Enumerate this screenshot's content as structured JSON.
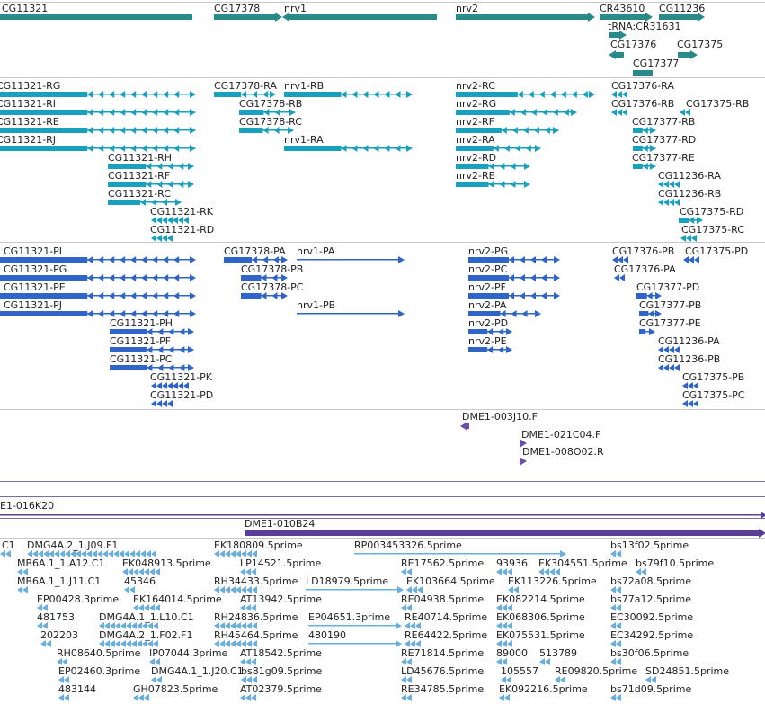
{
  "tracks": {
    "genes": {
      "color": "#2a8a8a",
      "features": [
        {
          "label": "CG11321"
        },
        {
          "label": "CG17378"
        },
        {
          "label": "nrv1"
        },
        {
          "label": "nrv2"
        },
        {
          "label": "CR43610"
        },
        {
          "label": "CG11236"
        },
        {
          "label": "tRNA:CR31631"
        },
        {
          "label": "CG17376"
        },
        {
          "label": "CG17375"
        },
        {
          "label": "CG17377"
        }
      ]
    },
    "transcripts": {
      "color": "#1aa0bf",
      "features": [
        {
          "label": "CG11321-RG"
        },
        {
          "label": "CG11321-RI"
        },
        {
          "label": "CG11321-RE"
        },
        {
          "label": "CG11321-RJ"
        },
        {
          "label": "CG11321-RH"
        },
        {
          "label": "CG11321-RF"
        },
        {
          "label": "CG11321-RC"
        },
        {
          "label": "CG11321-RK"
        },
        {
          "label": "CG11321-RD"
        },
        {
          "label": "CG17378-RA"
        },
        {
          "label": "nrv1-RB"
        },
        {
          "label": "CG17378-RB"
        },
        {
          "label": "CG17378-RC"
        },
        {
          "label": "nrv1-RA"
        },
        {
          "label": "nrv2-RC"
        },
        {
          "label": "nrv2-RG"
        },
        {
          "label": "nrv2-RF"
        },
        {
          "label": "nrv2-RA"
        },
        {
          "label": "nrv2-RD"
        },
        {
          "label": "nrv2-RE"
        },
        {
          "label": "CG17376-RA"
        },
        {
          "label": "CG17376-RB"
        },
        {
          "label": "CG17375-RB"
        },
        {
          "label": "CG17377-RB"
        },
        {
          "label": "CG17377-RD"
        },
        {
          "label": "CG17377-RE"
        },
        {
          "label": "CG11236-RA"
        },
        {
          "label": "CG11236-RB"
        },
        {
          "label": "CG17375-RD"
        },
        {
          "label": "CG17375-RC"
        }
      ]
    },
    "proteins": {
      "color": "#2f65c8",
      "features": [
        {
          "label": "CG11321-PI"
        },
        {
          "label": "CG11321-PG"
        },
        {
          "label": "CG11321-PE"
        },
        {
          "label": "CG11321-PJ"
        },
        {
          "label": "CG11321-PH"
        },
        {
          "label": "CG11321-PF"
        },
        {
          "label": "CG11321-PC"
        },
        {
          "label": "CG11321-PK"
        },
        {
          "label": "CG11321-PD"
        },
        {
          "label": "CG17378-PA"
        },
        {
          "label": "nrv1-PA"
        },
        {
          "label": "CG17378-PB"
        },
        {
          "label": "CG17378-PC"
        },
        {
          "label": "nrv1-PB"
        },
        {
          "label": "nrv2-PG"
        },
        {
          "label": "nrv2-PC"
        },
        {
          "label": "nrv2-PF"
        },
        {
          "label": "nrv2-PA"
        },
        {
          "label": "nrv2-PD"
        },
        {
          "label": "nrv2-PE"
        },
        {
          "label": "CG17376-PB"
        },
        {
          "label": "CG17375-PD"
        },
        {
          "label": "CG17376-PA"
        },
        {
          "label": "CG17377-PD"
        },
        {
          "label": "CG17377-PB"
        },
        {
          "label": "CG17377-PE"
        },
        {
          "label": "CG11236-PA"
        },
        {
          "label": "CG11236-PB"
        },
        {
          "label": "CG17375-PB"
        },
        {
          "label": "CG17375-PC"
        }
      ]
    },
    "clones": {
      "color": "#6a4ea8",
      "features": [
        {
          "label": "DME1-003J10.F"
        },
        {
          "label": "DME1-021C04.F"
        },
        {
          "label": "DME1-008O02.R"
        }
      ]
    },
    "bacs": {
      "color": "#5a3f96",
      "features": [
        {
          "label": "E1-016K20"
        },
        {
          "label": "DME1-010B24"
        }
      ]
    },
    "ests": {
      "color": "#6aaede",
      "features": [
        {
          "label": "C1"
        },
        {
          "label": "DMG4A.2_1.J09.F1"
        },
        {
          "label": "EK180809.5prime"
        },
        {
          "label": "RP003453326.5prime"
        },
        {
          "label": "bs13f02.5prime"
        },
        {
          "label": "MB6A.1_1.A12.C1"
        },
        {
          "label": "EK048913.5prime"
        },
        {
          "label": "LP14521.5prime"
        },
        {
          "label": "RE17562.5prime"
        },
        {
          "label": "93936"
        },
        {
          "label": "EK304551.5prime"
        },
        {
          "label": "bs79f10.5prime"
        },
        {
          "label": "MB6A.1_1.J11.C1"
        },
        {
          "label": "45346"
        },
        {
          "label": "RH34433.5prime"
        },
        {
          "label": "LD18979.5prime"
        },
        {
          "label": "EK103664.5prime"
        },
        {
          "label": "EK113226.5prime"
        },
        {
          "label": "bs72a08.5prime"
        },
        {
          "label": "EP00428.3prime"
        },
        {
          "label": "EK164014.5prime"
        },
        {
          "label": "AT13942.5prime"
        },
        {
          "label": "RE04938.5prime"
        },
        {
          "label": "EK082214.5prime"
        },
        {
          "label": "bs77a12.5prime"
        },
        {
          "label": "481753"
        },
        {
          "label": "DMG4A.1_1.L10.C1"
        },
        {
          "label": "RH24836.5prime"
        },
        {
          "label": "EP04651.3prime"
        },
        {
          "label": "RE40714.5prime"
        },
        {
          "label": "EK068306.5prime"
        },
        {
          "label": "EC30092.5prime"
        },
        {
          "label": "202203"
        },
        {
          "label": "DMG4A.2_1.F02.F1"
        },
        {
          "label": "RH45464.5prime"
        },
        {
          "label": "480190"
        },
        {
          "label": "RE64422.5prime"
        },
        {
          "label": "EK075531.5prime"
        },
        {
          "label": "EC34292.5prime"
        },
        {
          "label": "RH08640.5prime"
        },
        {
          "label": "IP07044.3prime"
        },
        {
          "label": "AT18542.5prime"
        },
        {
          "label": "RE71814.5prime"
        },
        {
          "label": "89000"
        },
        {
          "label": "513789"
        },
        {
          "label": "bs30f06.5prime"
        },
        {
          "label": "EP02460.3prime"
        },
        {
          "label": "DMG4A.1_1.J20.C1"
        },
        {
          "label": "bs81g09.5prime"
        },
        {
          "label": "LD45676.5prime"
        },
        {
          "label": "105557"
        },
        {
          "label": "RE09820.5prime"
        },
        {
          "label": "SD24851.5prime"
        },
        {
          "label": "483144"
        },
        {
          "label": "GH07823.5prime"
        },
        {
          "label": "AT02379.5prime"
        },
        {
          "label": "RE34785.5prime"
        },
        {
          "label": "EK092216.5prime"
        },
        {
          "label": "bs71d09.5prime"
        }
      ]
    }
  }
}
